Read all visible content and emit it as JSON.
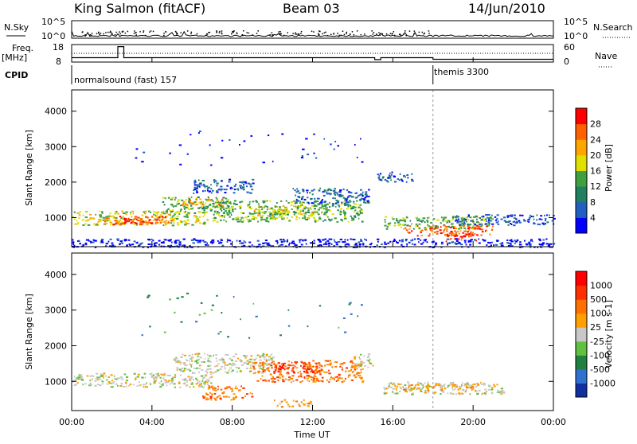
{
  "header": {
    "station": "King Salmon (fitACF)",
    "beam": "Beam 03",
    "date": "14/Jun/2010"
  },
  "strip_labels": {
    "nsky": "N.Sky",
    "nsearch": "N.Search",
    "freq": "Freq.",
    "freq_unit": "[MHz]",
    "nave": "Nave",
    "cpid": "CPID",
    "nsky_ticks": [
      "10^5",
      "10^0"
    ],
    "nsearch_ticks": [
      "10^5",
      "10^0"
    ],
    "freq_ticks": [
      "18",
      "8"
    ],
    "nave_ticks": [
      "60",
      "0"
    ]
  },
  "chart_data": [
    {
      "type": "line",
      "panel": "noise-and-frequency",
      "x_unit": "hours UT",
      "xlim": [
        0,
        24
      ],
      "frequency_mhz": {
        "ylim": [
          8,
          18
        ],
        "points": [
          [
            0,
            10.5
          ],
          [
            2.3,
            10.5
          ],
          [
            2.3,
            16.8
          ],
          [
            2.6,
            16.8
          ],
          [
            2.6,
            10.5
          ],
          [
            15.1,
            10.5
          ],
          [
            15.1,
            9.4
          ],
          [
            15.4,
            9.4
          ],
          [
            15.4,
            10.5
          ],
          [
            18.0,
            10.5
          ],
          [
            18.0,
            9.6
          ],
          [
            24,
            9.6
          ]
        ]
      },
      "cpid_segments": [
        {
          "label": "normalsound (fast) 157",
          "start": 0,
          "end": 18.0
        },
        {
          "label": "themis 3300",
          "start": 18.0,
          "end": 24
        }
      ]
    },
    {
      "type": "heatmap",
      "panel": "power",
      "xlabel": "",
      "ylabel": "Slant Range [km]",
      "xlim": [
        0,
        24
      ],
      "ylim": [
        180,
        4600
      ],
      "yticks": [
        1000,
        2000,
        3000,
        4000
      ],
      "colorbar": {
        "label": "Power [dB]",
        "ticks": [
          "4",
          "8",
          "12",
          "16",
          "20",
          "24",
          "28"
        ],
        "colors": [
          "#0000ff",
          "#2060c0",
          "#208060",
          "#40a040",
          "#e0e000",
          "#ffa500",
          "#ff6000",
          "#ff0000"
        ]
      },
      "regions": [
        {
          "t": [
            0.0,
            6.8
          ],
          "r": [
            800,
            1200
          ],
          "level": 4
        },
        {
          "t": [
            1.5,
            5.0
          ],
          "r": [
            820,
            1050
          ],
          "level": 6
        },
        {
          "t": [
            2.5,
            4.0
          ],
          "r": [
            850,
            1000
          ],
          "level": 7
        },
        {
          "t": [
            4.5,
            8.0
          ],
          "r": [
            1100,
            1600
          ],
          "level": 3
        },
        {
          "t": [
            5.5,
            7.5
          ],
          "r": [
            1350,
            1550
          ],
          "level": 5
        },
        {
          "t": [
            6.0,
            9.0
          ],
          "r": [
            1700,
            2100
          ],
          "level": 1
        },
        {
          "t": [
            7.0,
            14.5
          ],
          "r": [
            900,
            1500
          ],
          "level": 3
        },
        {
          "t": [
            9.0,
            12.0
          ],
          "r": [
            1000,
            1350
          ],
          "level": 4
        },
        {
          "t": [
            11.0,
            14.8
          ],
          "r": [
            1400,
            1850
          ],
          "level": 1
        },
        {
          "t": [
            15.2,
            17.0
          ],
          "r": [
            2000,
            2300
          ],
          "level": 1
        },
        {
          "t": [
            15.5,
            21.0
          ],
          "r": [
            700,
            1050
          ],
          "level": 3
        },
        {
          "t": [
            16.5,
            21.0
          ],
          "r": [
            500,
            800
          ],
          "level": 6
        },
        {
          "t": [
            18.5,
            20.2
          ],
          "r": [
            350,
            550
          ],
          "level": 7
        },
        {
          "t": [
            19.0,
            24.0
          ],
          "r": [
            800,
            1100
          ],
          "level": 1
        },
        {
          "t": [
            0.0,
            24.0
          ],
          "r": [
            180,
            420
          ],
          "level": 0
        },
        {
          "t": [
            3.0,
            15.0
          ],
          "r": [
            2500,
            3500
          ],
          "level": 0,
          "sparse": true
        }
      ]
    },
    {
      "type": "heatmap",
      "panel": "velocity",
      "xlabel": "Time UT",
      "ylabel": "Slant Range [km]",
      "xlim": [
        0,
        24
      ],
      "ylim": [
        180,
        4600
      ],
      "yticks": [
        1000,
        2000,
        3000,
        4000
      ],
      "xticks": [
        "00:00",
        "04:00",
        "08:00",
        "12:00",
        "16:00",
        "20:00",
        "00:00"
      ],
      "colorbar": {
        "label": "Velocity [m s-1]",
        "ticks": [
          "1000",
          "500",
          "100",
          "25",
          "-25",
          "-100",
          "-500",
          "-1000"
        ],
        "colors": [
          "#1030a0",
          "#3070d0",
          "#208040",
          "#60c040",
          "#c8c8c8",
          "#ffa000",
          "#ff7000",
          "#ff3000",
          "#ff0000"
        ]
      },
      "regions": [
        {
          "t": [
            0.0,
            7.0
          ],
          "r": [
            850,
            1250
          ],
          "level": 4
        },
        {
          "t": [
            5.0,
            10.0
          ],
          "r": [
            1250,
            1800
          ],
          "level": 4
        },
        {
          "t": [
            6.5,
            9.0
          ],
          "r": [
            500,
            900
          ],
          "level": 6
        },
        {
          "t": [
            9.0,
            14.5
          ],
          "r": [
            1000,
            1600
          ],
          "level": 6
        },
        {
          "t": [
            10.0,
            12.5
          ],
          "r": [
            1250,
            1550
          ],
          "level": 7
        },
        {
          "t": [
            10.0,
            12.0
          ],
          "r": [
            300,
            500
          ],
          "level": 5
        },
        {
          "t": [
            14.0,
            15.0
          ],
          "r": [
            1400,
            1800
          ],
          "level": 4
        },
        {
          "t": [
            15.5,
            21.5
          ],
          "r": [
            650,
            1000
          ],
          "level": 4
        },
        {
          "t": [
            16.0,
            20.0
          ],
          "r": [
            750,
            950
          ],
          "level": 5
        },
        {
          "t": [
            3.0,
            15.0
          ],
          "r": [
            2200,
            3500
          ],
          "level": 2,
          "sparse": true
        }
      ]
    }
  ]
}
